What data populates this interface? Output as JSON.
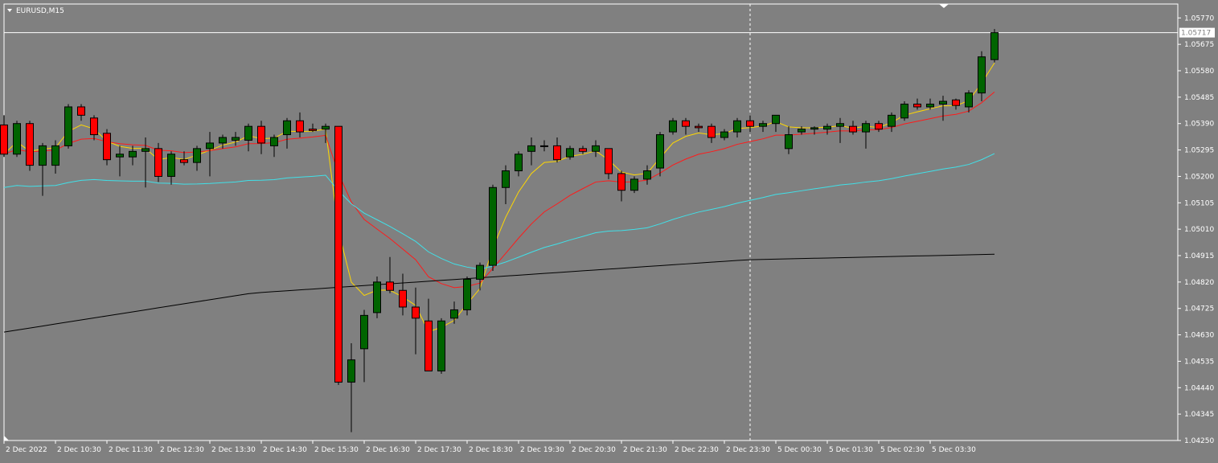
{
  "chart_data": {
    "type": "candlestick",
    "title": "EURUSD,M15",
    "symbol": "EURUSD",
    "timeframe": "M15",
    "current_price": "1.05717",
    "ylim": [
      1.0425,
      1.0582
    ],
    "y_ticks": [
      "1.05770",
      "1.05675",
      "1.05580",
      "1.05485",
      "1.05390",
      "1.05295",
      "1.05200",
      "1.05105",
      "1.05010",
      "1.04915",
      "1.04820",
      "1.04725",
      "1.04630",
      "1.04535",
      "1.04440",
      "1.04345",
      "1.04250"
    ],
    "x_ticks": [
      {
        "label": "2 Dec 2022",
        "bar": 0
      },
      {
        "label": "2 Dec 10:30",
        "bar": 4
      },
      {
        "label": "2 Dec 11:30",
        "bar": 8
      },
      {
        "label": "2 Dec 12:30",
        "bar": 12
      },
      {
        "label": "2 Dec 13:30",
        "bar": 16
      },
      {
        "label": "2 Dec 14:30",
        "bar": 20
      },
      {
        "label": "2 Dec 15:30",
        "bar": 24
      },
      {
        "label": "2 Dec 16:30",
        "bar": 28
      },
      {
        "label": "2 Dec 17:30",
        "bar": 32
      },
      {
        "label": "2 Dec 18:30",
        "bar": 36
      },
      {
        "label": "2 Dec 19:30",
        "bar": 40
      },
      {
        "label": "2 Dec 20:30",
        "bar": 44
      },
      {
        "label": "2 Dec 21:30",
        "bar": 48
      },
      {
        "label": "2 Dec 22:30",
        "bar": 52
      },
      {
        "label": "2 Dec 23:30",
        "bar": 56
      },
      {
        "label": "5 Dec 00:30",
        "bar": 60
      },
      {
        "label": "5 Dec 01:30",
        "bar": 64
      },
      {
        "label": "5 Dec 02:30",
        "bar": 68
      },
      {
        "label": "5 Dec 03:30",
        "bar": 72
      }
    ],
    "crosshair_bar": 58,
    "candles": [
      {
        "o": 1.05385,
        "h": 1.0542,
        "l": 1.0527,
        "c": 1.0528
      },
      {
        "o": 1.0528,
        "h": 1.054,
        "l": 1.0527,
        "c": 1.0539
      },
      {
        "o": 1.0539,
        "h": 1.054,
        "l": 1.0522,
        "c": 1.0524
      },
      {
        "o": 1.0524,
        "h": 1.0532,
        "l": 1.0513,
        "c": 1.0531
      },
      {
        "o": 1.0524,
        "h": 1.0533,
        "l": 1.0521,
        "c": 1.0531
      },
      {
        "o": 1.0531,
        "h": 1.0546,
        "l": 1.053,
        "c": 1.0545
      },
      {
        "o": 1.0545,
        "h": 1.0546,
        "l": 1.054,
        "c": 1.0542
      },
      {
        "o": 1.0541,
        "h": 1.0542,
        "l": 1.0533,
        "c": 1.0535
      },
      {
        "o": 1.05355,
        "h": 1.0537,
        "l": 1.0524,
        "c": 1.0526
      },
      {
        "o": 1.0527,
        "h": 1.0531,
        "l": 1.052,
        "c": 1.0528
      },
      {
        "o": 1.0527,
        "h": 1.0531,
        "l": 1.0524,
        "c": 1.0529
      },
      {
        "o": 1.0529,
        "h": 1.0534,
        "l": 1.0516,
        "c": 1.053
      },
      {
        "o": 1.053,
        "h": 1.0532,
        "l": 1.0518,
        "c": 1.052
      },
      {
        "o": 1.052,
        "h": 1.0529,
        "l": 1.0517,
        "c": 1.0528
      },
      {
        "o": 1.0526,
        "h": 1.0529,
        "l": 1.0524,
        "c": 1.0525
      },
      {
        "o": 1.0525,
        "h": 1.0531,
        "l": 1.0522,
        "c": 1.053
      },
      {
        "o": 1.053,
        "h": 1.0536,
        "l": 1.052,
        "c": 1.0532
      },
      {
        "o": 1.0532,
        "h": 1.0535,
        "l": 1.053,
        "c": 1.0534
      },
      {
        "o": 1.0533,
        "h": 1.0536,
        "l": 1.0531,
        "c": 1.0534
      },
      {
        "o": 1.0533,
        "h": 1.0539,
        "l": 1.0529,
        "c": 1.0538
      },
      {
        "o": 1.0538,
        "h": 1.054,
        "l": 1.0528,
        "c": 1.0532
      },
      {
        "o": 1.0531,
        "h": 1.0535,
        "l": 1.0527,
        "c": 1.0534
      },
      {
        "o": 1.0535,
        "h": 1.0541,
        "l": 1.053,
        "c": 1.054
      },
      {
        "o": 1.054,
        "h": 1.0543,
        "l": 1.0534,
        "c": 1.0536
      },
      {
        "o": 1.0537,
        "h": 1.0539,
        "l": 1.0536,
        "c": 1.05365
      },
      {
        "o": 1.0537,
        "h": 1.0539,
        "l": 1.0532,
        "c": 1.0538
      },
      {
        "o": 1.0538,
        "h": 1.0538,
        "l": 1.0445,
        "c": 1.0446
      },
      {
        "o": 1.0446,
        "h": 1.046,
        "l": 1.0428,
        "c": 1.0454
      },
      {
        "o": 1.0458,
        "h": 1.0472,
        "l": 1.0446,
        "c": 1.047
      },
      {
        "o": 1.0471,
        "h": 1.0484,
        "l": 1.0469,
        "c": 1.0482
      },
      {
        "o": 1.0482,
        "h": 1.0491,
        "l": 1.0478,
        "c": 1.0479
      },
      {
        "o": 1.0479,
        "h": 1.0485,
        "l": 1.047,
        "c": 1.0473
      },
      {
        "o": 1.0473,
        "h": 1.048,
        "l": 1.0456,
        "c": 1.0469
      },
      {
        "o": 1.0468,
        "h": 1.0476,
        "l": 1.045,
        "c": 1.045
      },
      {
        "o": 1.045,
        "h": 1.0469,
        "l": 1.0449,
        "c": 1.0468
      },
      {
        "o": 1.0469,
        "h": 1.0475,
        "l": 1.0467,
        "c": 1.0472
      },
      {
        "o": 1.0472,
        "h": 1.0484,
        "l": 1.047,
        "c": 1.0483
      },
      {
        "o": 1.0483,
        "h": 1.0489,
        "l": 1.0479,
        "c": 1.0488
      },
      {
        "o": 1.0488,
        "h": 1.0517,
        "l": 1.0486,
        "c": 1.0516
      },
      {
        "o": 1.0516,
        "h": 1.0524,
        "l": 1.051,
        "c": 1.0522
      },
      {
        "o": 1.0522,
        "h": 1.0529,
        "l": 1.052,
        "c": 1.0528
      },
      {
        "o": 1.0529,
        "h": 1.0534,
        "l": 1.0524,
        "c": 1.0531
      },
      {
        "o": 1.0531,
        "h": 1.0533,
        "l": 1.0529,
        "c": 1.0531
      },
      {
        "o": 1.0531,
        "h": 1.0534,
        "l": 1.0525,
        "c": 1.0526
      },
      {
        "o": 1.0527,
        "h": 1.0531,
        "l": 1.0526,
        "c": 1.053
      },
      {
        "o": 1.053,
        "h": 1.0531,
        "l": 1.0528,
        "c": 1.0529
      },
      {
        "o": 1.0529,
        "h": 1.0533,
        "l": 1.0527,
        "c": 1.0531
      },
      {
        "o": 1.053,
        "h": 1.053,
        "l": 1.0519,
        "c": 1.0521
      },
      {
        "o": 1.0521,
        "h": 1.0522,
        "l": 1.0511,
        "c": 1.0515
      },
      {
        "o": 1.0515,
        "h": 1.052,
        "l": 1.0514,
        "c": 1.0519
      },
      {
        "o": 1.0519,
        "h": 1.0524,
        "l": 1.0517,
        "c": 1.0522
      },
      {
        "o": 1.0523,
        "h": 1.0536,
        "l": 1.052,
        "c": 1.0535
      },
      {
        "o": 1.0536,
        "h": 1.0541,
        "l": 1.0535,
        "c": 1.054
      },
      {
        "o": 1.054,
        "h": 1.0541,
        "l": 1.0535,
        "c": 1.0538
      },
      {
        "o": 1.0538,
        "h": 1.0539,
        "l": 1.0536,
        "c": 1.05375
      },
      {
        "o": 1.0538,
        "h": 1.0539,
        "l": 1.0532,
        "c": 1.0534
      },
      {
        "o": 1.0534,
        "h": 1.0537,
        "l": 1.0533,
        "c": 1.0536
      },
      {
        "o": 1.0536,
        "h": 1.0541,
        "l": 1.0534,
        "c": 1.054
      },
      {
        "o": 1.054,
        "h": 1.0542,
        "l": 1.0536,
        "c": 1.0538
      },
      {
        "o": 1.0538,
        "h": 1.054,
        "l": 1.0536,
        "c": 1.0539
      },
      {
        "o": 1.0539,
        "h": 1.0542,
        "l": 1.0536,
        "c": 1.0542
      },
      {
        "o": 1.053,
        "h": 1.0538,
        "l": 1.0528,
        "c": 1.0535
      },
      {
        "o": 1.0536,
        "h": 1.0538,
        "l": 1.0535,
        "c": 1.0537
      },
      {
        "o": 1.0537,
        "h": 1.0538,
        "l": 1.0535,
        "c": 1.05375
      },
      {
        "o": 1.0537,
        "h": 1.0539,
        "l": 1.0535,
        "c": 1.0538
      },
      {
        "o": 1.0538,
        "h": 1.0541,
        "l": 1.0532,
        "c": 1.0539
      },
      {
        "o": 1.0538,
        "h": 1.054,
        "l": 1.0535,
        "c": 1.0536
      },
      {
        "o": 1.0536,
        "h": 1.054,
        "l": 1.053,
        "c": 1.0539
      },
      {
        "o": 1.0539,
        "h": 1.054,
        "l": 1.0536,
        "c": 1.0537
      },
      {
        "o": 1.0538,
        "h": 1.0543,
        "l": 1.0536,
        "c": 1.0542
      },
      {
        "o": 1.0541,
        "h": 1.0547,
        "l": 1.054,
        "c": 1.0546
      },
      {
        "o": 1.0546,
        "h": 1.0548,
        "l": 1.0544,
        "c": 1.0545
      },
      {
        "o": 1.0545,
        "h": 1.0548,
        "l": 1.0544,
        "c": 1.0546
      },
      {
        "o": 1.0546,
        "h": 1.0549,
        "l": 1.054,
        "c": 1.0547
      },
      {
        "o": 1.05475,
        "h": 1.0548,
        "l": 1.0544,
        "c": 1.05455
      },
      {
        "o": 1.0545,
        "h": 1.0551,
        "l": 1.0543,
        "c": 1.055
      },
      {
        "o": 1.055,
        "h": 1.0565,
        "l": 1.0547,
        "c": 1.0563
      },
      {
        "o": 1.0562,
        "h": 1.0573,
        "l": 1.0561,
        "c": 1.05717
      }
    ],
    "ma_fast_color": "#ffd700",
    "ma_mid_color": "#ff1a1a",
    "ma_slow_color": "#40e0e8",
    "ma_long_color": "#000000",
    "bull_color": "#006400",
    "bear_color": "#ff0000",
    "ma_long": [
      1.0464,
      1.0478,
      1.0484,
      1.049,
      1.0492
    ]
  }
}
